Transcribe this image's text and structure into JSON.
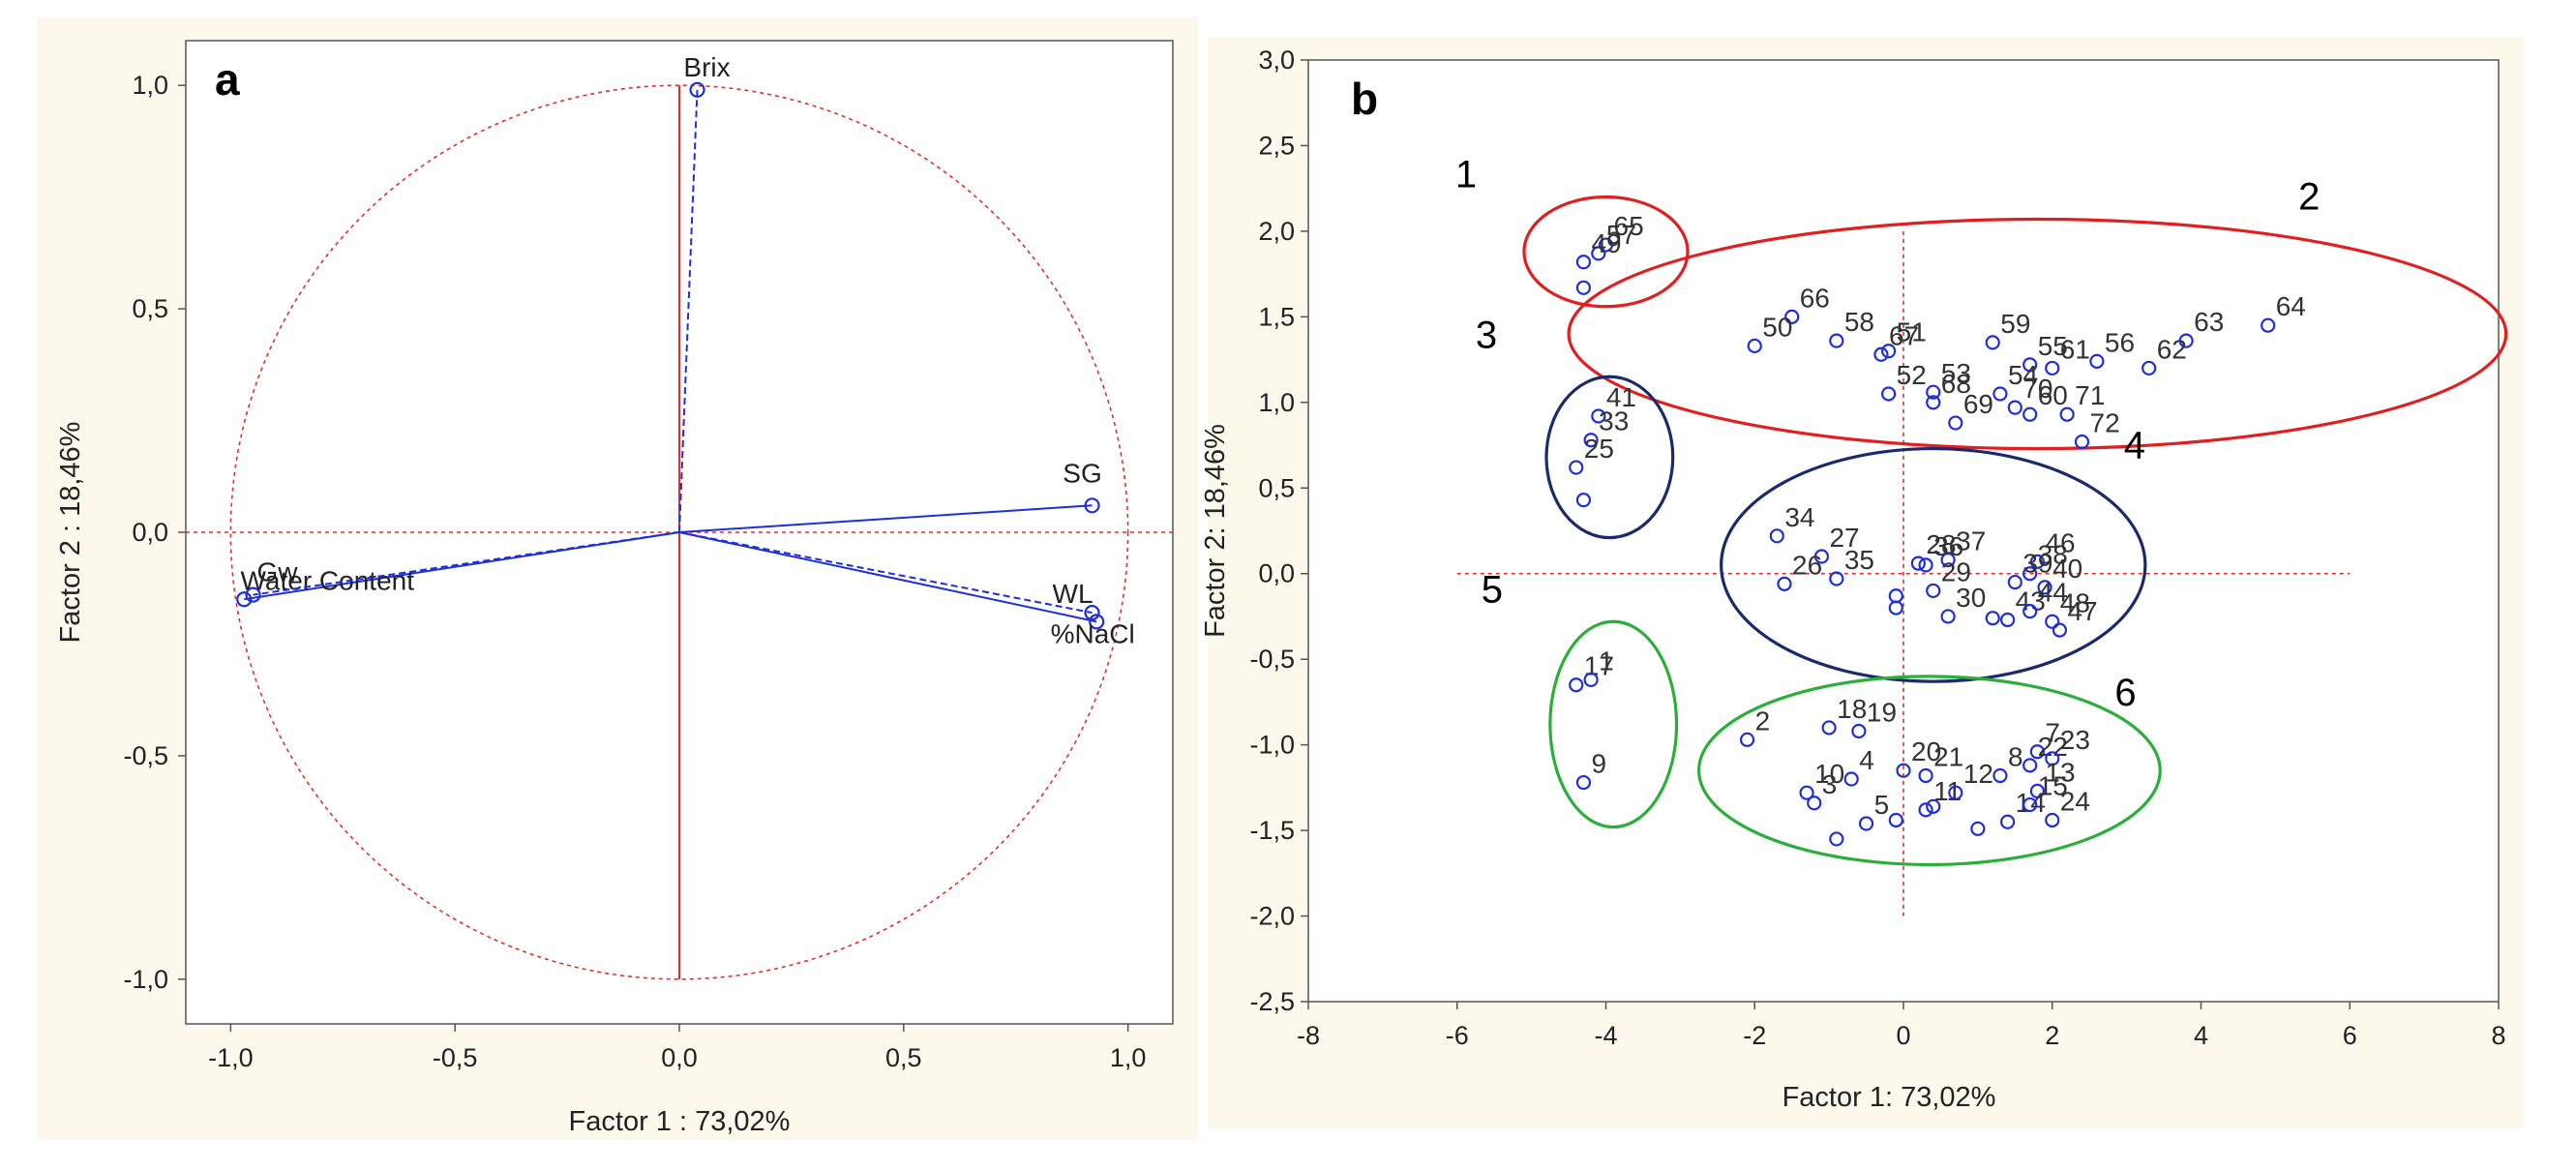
{
  "chart_data": [
    {
      "type": "scatter",
      "subtype": "loading-plot",
      "panel_label": "a",
      "xlabel": "Factor 1 : 73,02%",
      "ylabel": "Factor 2 : 18,46%",
      "xlim": [
        -1.1,
        1.1
      ],
      "ylim": [
        -1.1,
        1.1
      ],
      "x_ticks": [
        -1.0,
        -0.5,
        0.0,
        0.5,
        1.0
      ],
      "x_tick_labels": [
        "-1,0",
        "-0,5",
        "0,0",
        "0,5",
        "1,0"
      ],
      "y_ticks": [
        -1.0,
        -0.5,
        0.0,
        0.5,
        1.0
      ],
      "y_tick_labels": [
        "-1,0",
        "-0,5",
        "0,0",
        "0,5",
        "1,0"
      ],
      "unit_circle": true,
      "vectors": [
        {
          "label": "Brix",
          "x": 0.04,
          "y": 0.99,
          "dashed": true
        },
        {
          "label": "SG",
          "x": 0.92,
          "y": 0.06,
          "dashed": false
        },
        {
          "label": "WL",
          "x": 0.92,
          "y": -0.18,
          "dashed": true
        },
        {
          "label": "%NaCl",
          "x": 0.93,
          "y": -0.2,
          "dashed": false
        },
        {
          "label": "Water Content",
          "x": -0.97,
          "y": -0.15,
          "dashed": false
        },
        {
          "label": "Gw",
          "x": -0.95,
          "y": -0.14,
          "dashed": true
        }
      ]
    },
    {
      "type": "scatter",
      "subtype": "score-plot",
      "panel_label": "b",
      "xlabel": "Factor 1: 73,02%",
      "ylabel": "Factor 2: 18,46%",
      "xlim": [
        -8,
        8
      ],
      "ylim": [
        -2.5,
        3.0
      ],
      "x_ticks": [
        -8,
        -6,
        -4,
        -2,
        0,
        2,
        4,
        6,
        8
      ],
      "x_tick_labels": [
        "-8",
        "-6",
        "-4",
        "-2",
        "0",
        "2",
        "4",
        "6",
        "8"
      ],
      "y_ticks": [
        -2.5,
        -2.0,
        -1.5,
        -1.0,
        -0.5,
        0.0,
        0.5,
        1.0,
        1.5,
        2.0,
        2.5,
        3.0
      ],
      "y_tick_labels": [
        "-2,5",
        "-2,0",
        "-1,5",
        "-1,0",
        "-0,5",
        "0,0",
        "0,5",
        "1,0",
        "1,5",
        "2,0",
        "2,5",
        "3,0"
      ],
      "points": [
        {
          "label": "65",
          "x": -4.0,
          "y": 1.92
        },
        {
          "label": "57",
          "x": -4.1,
          "y": 1.87
        },
        {
          "label": "49",
          "x": -4.3,
          "y": 1.82
        },
        {
          "label": "",
          "x": -4.3,
          "y": 1.67
        },
        {
          "label": "66",
          "x": -1.5,
          "y": 1.5
        },
        {
          "label": "50",
          "x": -2.0,
          "y": 1.33
        },
        {
          "label": "58",
          "x": -0.9,
          "y": 1.36
        },
        {
          "label": "67",
          "x": -0.3,
          "y": 1.28
        },
        {
          "label": "51",
          "x": -0.2,
          "y": 1.3
        },
        {
          "label": "59",
          "x": 1.2,
          "y": 1.35
        },
        {
          "label": "55",
          "x": 1.7,
          "y": 1.22
        },
        {
          "label": "61",
          "x": 2.0,
          "y": 1.2
        },
        {
          "label": "56",
          "x": 2.6,
          "y": 1.24
        },
        {
          "label": "62",
          "x": 3.3,
          "y": 1.2
        },
        {
          "label": "63",
          "x": 3.8,
          "y": 1.36
        },
        {
          "label": "64",
          "x": 4.9,
          "y": 1.45
        },
        {
          "label": "52",
          "x": -0.2,
          "y": 1.05
        },
        {
          "label": "53",
          "x": 0.4,
          "y": 1.06
        },
        {
          "label": "68",
          "x": 0.4,
          "y": 1.0
        },
        {
          "label": "69",
          "x": 0.7,
          "y": 0.88
        },
        {
          "label": "54",
          "x": 1.3,
          "y": 1.05
        },
        {
          "label": "70",
          "x": 1.5,
          "y": 0.97
        },
        {
          "label": "60",
          "x": 1.7,
          "y": 0.93
        },
        {
          "label": "71",
          "x": 2.2,
          "y": 0.93
        },
        {
          "label": "72",
          "x": 2.4,
          "y": 0.77
        },
        {
          "label": "41",
          "x": -4.1,
          "y": 0.92
        },
        {
          "label": "33",
          "x": -4.2,
          "y": 0.78
        },
        {
          "label": "25",
          "x": -4.4,
          "y": 0.62
        },
        {
          "label": "",
          "x": -4.3,
          "y": 0.43
        },
        {
          "label": "34",
          "x": -1.7,
          "y": 0.22
        },
        {
          "label": "27",
          "x": -1.1,
          "y": 0.1
        },
        {
          "label": "26",
          "x": -1.6,
          "y": -0.06
        },
        {
          "label": "35",
          "x": -0.9,
          "y": -0.03
        },
        {
          "label": "36",
          "x": 0.3,
          "y": 0.05
        },
        {
          "label": "37",
          "x": 0.6,
          "y": 0.08
        },
        {
          "label": "28",
          "x": 0.2,
          "y": 0.06
        },
        {
          "label": "29",
          "x": 0.4,
          "y": -0.1
        },
        {
          "label": "38",
          "x": 1.7,
          "y": 0.0
        },
        {
          "label": "46",
          "x": 1.8,
          "y": 0.07
        },
        {
          "label": "39",
          "x": 1.5,
          "y": -0.05
        },
        {
          "label": "40",
          "x": 1.9,
          "y": -0.08
        },
        {
          "label": "30",
          "x": 0.6,
          "y": -0.25
        },
        {
          "label": "43",
          "x": 1.4,
          "y": -0.27
        },
        {
          "label": "44",
          "x": 1.7,
          "y": -0.22
        },
        {
          "label": "48",
          "x": 2.0,
          "y": -0.28
        },
        {
          "label": "47",
          "x": 2.1,
          "y": -0.33
        },
        {
          "label": "",
          "x": -0.1,
          "y": -0.13
        },
        {
          "label": "",
          "x": -0.1,
          "y": -0.2
        },
        {
          "label": "",
          "x": 1.2,
          "y": -0.26
        },
        {
          "label": "17",
          "x": -4.4,
          "y": -0.65
        },
        {
          "label": "1",
          "x": -4.2,
          "y": -0.62
        },
        {
          "label": "9",
          "x": -4.3,
          "y": -1.22
        },
        {
          "label": "2",
          "x": -2.1,
          "y": -0.97
        },
        {
          "label": "18",
          "x": -1.0,
          "y": -0.9
        },
        {
          "label": "19",
          "x": -0.6,
          "y": -0.92
        },
        {
          "label": "10",
          "x": -1.3,
          "y": -1.28
        },
        {
          "label": "3",
          "x": -1.2,
          "y": -1.34
        },
        {
          "label": "4",
          "x": -0.7,
          "y": -1.2
        },
        {
          "label": "20",
          "x": 0.0,
          "y": -1.15
        },
        {
          "label": "5",
          "x": -0.5,
          "y": -1.46
        },
        {
          "label": "21",
          "x": 0.3,
          "y": -1.18
        },
        {
          "label": "11",
          "x": 0.3,
          "y": -1.38
        },
        {
          "label": "12",
          "x": 0.7,
          "y": -1.28
        },
        {
          "label": "8",
          "x": 1.3,
          "y": -1.18
        },
        {
          "label": "7",
          "x": 1.8,
          "y": -1.04
        },
        {
          "label": "22",
          "x": 1.7,
          "y": -1.12
        },
        {
          "label": "23",
          "x": 2.0,
          "y": -1.08
        },
        {
          "label": "13",
          "x": 1.8,
          "y": -1.27
        },
        {
          "label": "14",
          "x": 1.4,
          "y": -1.45
        },
        {
          "label": "15",
          "x": 1.7,
          "y": -1.35
        },
        {
          "label": "24",
          "x": 2.0,
          "y": -1.44
        },
        {
          "label": "",
          "x": -0.9,
          "y": -1.55
        },
        {
          "label": "",
          "x": 1.0,
          "y": -1.49
        },
        {
          "label": "",
          "x": 0.4,
          "y": -1.36
        },
        {
          "label": "",
          "x": -0.1,
          "y": -1.44
        }
      ],
      "groups": [
        {
          "label": "1",
          "cx": -4.0,
          "cy": 1.88,
          "rx": 1.1,
          "ry": 0.32
        },
        {
          "label": "2",
          "cx": 1.8,
          "cy": 1.4,
          "rx": 6.3,
          "ry": 0.67
        },
        {
          "label": "3",
          "cx": -3.95,
          "cy": 0.68,
          "rx": 0.85,
          "ry": 0.47
        },
        {
          "label": "4",
          "cx": 0.4,
          "cy": 0.05,
          "rx": 2.85,
          "ry": 0.68
        },
        {
          "label": "5",
          "cx": -3.9,
          "cy": -0.88,
          "rx": 0.85,
          "ry": 0.6
        },
        {
          "label": "6",
          "cx": 0.35,
          "cy": -1.15,
          "rx": 3.1,
          "ry": 0.55
        }
      ]
    }
  ]
}
